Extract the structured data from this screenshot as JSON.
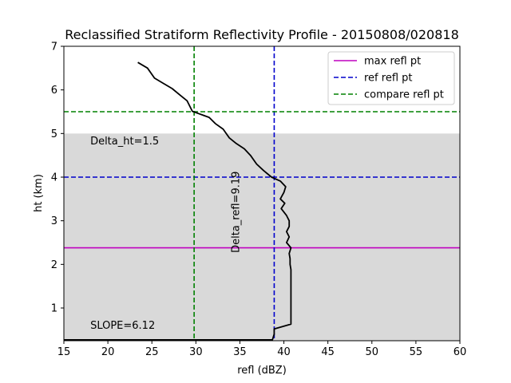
{
  "chart_data": {
    "type": "line",
    "title": "Reclassified Stratiform Reflectivity Profile - 20150808/020818",
    "xlabel": "refl (dBZ)",
    "ylabel": "ht (km)",
    "xlim": [
      15,
      60
    ],
    "ylim": [
      0.25,
      7
    ],
    "xticks": [
      15,
      20,
      25,
      30,
      35,
      40,
      45,
      50,
      55,
      60
    ],
    "yticks": [
      1,
      2,
      3,
      4,
      5,
      6,
      7
    ],
    "grid": false,
    "legend_position": "top-right",
    "shaded_region": {
      "y_min": 0.25,
      "y_max": 5.0,
      "color": "#d9d9d9"
    },
    "profile": {
      "color": "#000000",
      "points": [
        [
          23.4,
          6.63
        ],
        [
          24.5,
          6.5
        ],
        [
          25.3,
          6.27
        ],
        [
          26.3,
          6.15
        ],
        [
          27.3,
          6.03
        ],
        [
          28.2,
          5.88
        ],
        [
          29.0,
          5.75
        ],
        [
          29.6,
          5.51
        ],
        [
          30.4,
          5.45
        ],
        [
          31.5,
          5.37
        ],
        [
          32.2,
          5.23
        ],
        [
          33.1,
          5.1
        ],
        [
          33.8,
          4.9
        ],
        [
          34.6,
          4.77
        ],
        [
          35.5,
          4.65
        ],
        [
          36.2,
          4.5
        ],
        [
          36.9,
          4.3
        ],
        [
          37.7,
          4.15
        ],
        [
          38.6,
          4.0
        ],
        [
          39.6,
          3.91
        ],
        [
          40.2,
          3.78
        ],
        [
          40.0,
          3.65
        ],
        [
          39.6,
          3.5
        ],
        [
          40.1,
          3.4
        ],
        [
          39.7,
          3.28
        ],
        [
          40.3,
          3.12
        ],
        [
          40.6,
          3.0
        ],
        [
          40.6,
          2.87
        ],
        [
          40.3,
          2.75
        ],
        [
          40.6,
          2.63
        ],
        [
          40.3,
          2.5
        ],
        [
          40.8,
          2.38
        ],
        [
          40.6,
          2.25
        ],
        [
          40.7,
          2.13
        ],
        [
          40.7,
          2.0
        ],
        [
          40.8,
          1.88
        ],
        [
          40.8,
          1.75
        ],
        [
          40.8,
          1.0
        ],
        [
          40.8,
          0.63
        ],
        [
          38.9,
          0.52
        ],
        [
          38.9,
          0.4
        ],
        [
          38.7,
          0.27
        ],
        [
          15.0,
          0.27
        ]
      ]
    },
    "reference_lines": [
      {
        "name": "max refl pt",
        "orientation": "horizontal",
        "value": 2.38,
        "color": "#bf00bf",
        "style": "solid"
      },
      {
        "name": "ref refl pt",
        "orientation": "horizontal",
        "value": 4.0,
        "color": "#0000cc",
        "style": "dashed"
      },
      {
        "name": "ref refl pt",
        "orientation": "vertical",
        "value": 38.9,
        "color": "#0000cc",
        "style": "dashed"
      },
      {
        "name": "compare refl pt",
        "orientation": "horizontal",
        "value": 5.5,
        "color": "#008000",
        "style": "dashed"
      },
      {
        "name": "compare refl pt",
        "orientation": "vertical",
        "value": 29.8,
        "color": "#008000",
        "style": "dashed"
      }
    ],
    "legend": [
      {
        "label": "max refl pt",
        "color": "#bf00bf",
        "style": "solid"
      },
      {
        "label": "ref refl pt",
        "color": "#0000cc",
        "style": "dashed"
      },
      {
        "label": "compare refl pt",
        "color": "#008000",
        "style": "dashed"
      }
    ],
    "annotations": [
      {
        "text": "Delta_ht=1.5",
        "x": 18.0,
        "y": 4.75,
        "rotation": 0
      },
      {
        "text": "SLOPE=6.12",
        "x": 18.0,
        "y": 0.52,
        "rotation": 0
      },
      {
        "text": "Delta_refl=9.19",
        "x": 34.9,
        "y": 3.2,
        "rotation": -90
      }
    ]
  }
}
